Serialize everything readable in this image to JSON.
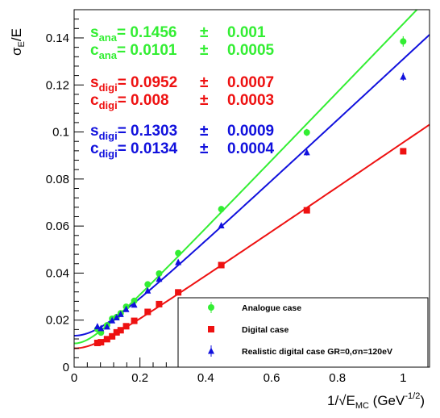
{
  "chart_data": {
    "type": "scatter",
    "title": "",
    "xlabel": "1/√E_MC (GeV^-1/2)",
    "ylabel": "σE/E",
    "xlim": [
      0,
      1.08
    ],
    "ylim": [
      0,
      0.152
    ],
    "x_ticks": [
      0,
      0.2,
      0.4,
      0.6,
      0.8,
      1
    ],
    "y_ticks": [
      0,
      0.02,
      0.04,
      0.06,
      0.08,
      0.1,
      0.12,
      0.14
    ],
    "x_tick_labels": [
      "0",
      "0.2",
      "0.4",
      "0.6",
      "0.8",
      "1"
    ],
    "y_tick_labels": [
      "0",
      "0.02",
      "0.04",
      "0.06",
      "0.08",
      "0.1",
      "0.12",
      "0.14"
    ],
    "grid": false,
    "legend_position": "bottom-right",
    "series": [
      {
        "name": "Analogue case",
        "color": "#33ee33",
        "marker": "circle",
        "x": [
          0.0707,
          0.0816,
          0.1,
          0.1155,
          0.1291,
          0.1414,
          0.1581,
          0.1826,
          0.2236,
          0.2582,
          0.3162,
          0.4472,
          0.7071,
          1.0
        ],
        "y": [
          0.0162,
          0.0147,
          0.0178,
          0.0206,
          0.0213,
          0.0229,
          0.0257,
          0.0282,
          0.0352,
          0.0398,
          0.0485,
          0.0672,
          0.0998,
          0.1385
        ],
        "yerr": [
          0.0004,
          0.0004,
          0.0004,
          0.0004,
          0.0004,
          0.0004,
          0.0004,
          0.0005,
          0.0005,
          0.0006,
          0.0008,
          0.0009,
          0.0015,
          0.0022
        ],
        "fit": {
          "s": 0.1456,
          "c": 0.0101
        }
      },
      {
        "name": "Digital case",
        "color": "#ee1111",
        "marker": "square",
        "x": [
          0.0707,
          0.0816,
          0.1,
          0.1155,
          0.1291,
          0.1414,
          0.1581,
          0.1826,
          0.2236,
          0.2582,
          0.3162,
          0.4472,
          0.7071,
          1.0
        ],
        "y": [
          0.0103,
          0.0106,
          0.0119,
          0.0131,
          0.0148,
          0.0157,
          0.0174,
          0.0197,
          0.0235,
          0.0268,
          0.0318,
          0.0434,
          0.0667,
          0.0918
        ],
        "fit": {
          "s": 0.0952,
          "c": 0.008
        }
      },
      {
        "name": "Realistic digital case GR=0,σn=120eV",
        "color": "#1111dd",
        "marker": "triangle",
        "x": [
          0.0707,
          0.0816,
          0.1,
          0.1155,
          0.1291,
          0.1414,
          0.1581,
          0.1826,
          0.2236,
          0.2582,
          0.3162,
          0.4472,
          0.7071,
          1.0
        ],
        "y": [
          0.0173,
          0.0165,
          0.0172,
          0.0198,
          0.0211,
          0.0225,
          0.0246,
          0.0265,
          0.0325,
          0.0375,
          0.0446,
          0.0602,
          0.0913,
          0.1235
        ],
        "yerr": [
          0.0004,
          0.0004,
          0.0004,
          0.0004,
          0.0004,
          0.0004,
          0.0004,
          0.0005,
          0.0005,
          0.0006,
          0.0007,
          0.0008,
          0.0013,
          0.0017
        ],
        "fit": {
          "s": 0.1303,
          "c": 0.0134
        }
      }
    ],
    "annotations": [
      {
        "line1": {
          "sym": "s",
          "sub": "ana",
          "val": "= 0.1456",
          "pm": "±",
          "err": "0.001"
        },
        "line2": {
          "sym": "c",
          "sub": "ana",
          "val": "= 0.0101",
          "pm": "±",
          "err": "0.0005"
        },
        "color": "#33ee33"
      },
      {
        "line1": {
          "sym": "s",
          "sub": "digi",
          "val": "= 0.0952",
          "pm": "±",
          "err": "0.0007"
        },
        "line2": {
          "sym": "c",
          "sub": "digi",
          "val": "= 0.008",
          "pm": "±",
          "err": "0.0003"
        },
        "color": "#ee1111"
      },
      {
        "line1": {
          "sym": "s",
          "sub": "digi",
          "val": "= 0.1303",
          "pm": "±",
          "err": "0.0009"
        },
        "line2": {
          "sym": "c",
          "sub": "digi",
          "val": "= 0.0134",
          "pm": "±",
          "err": "0.0004"
        },
        "color": "#1111dd"
      }
    ]
  }
}
